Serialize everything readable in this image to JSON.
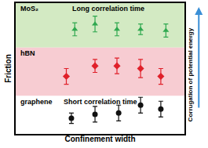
{
  "chart_data": {
    "type": "scatter",
    "xlabel": "Confinement width",
    "ylabel": "Friction",
    "y2label": "Corrugation of potential energy",
    "annotations": [
      "Long correlation time",
      "Short correlation time"
    ],
    "xlim": [
      0,
      10
    ],
    "ylim": [
      0,
      10
    ],
    "xticks": [],
    "yticks": [],
    "tick_labels": false,
    "grid": false,
    "series": [
      {
        "name": "MoS₂",
        "color": "#2fa84f",
        "marker": "triangle-up",
        "band_color": "#d3eac3",
        "band": [
          6.6,
          10
        ],
        "x": [
          3.5,
          4.7,
          6.0,
          7.4,
          8.9
        ],
        "values": [
          8.0,
          8.4,
          8.0,
          8.0,
          7.9
        ],
        "errors": [
          0.5,
          0.6,
          0.5,
          0.4,
          0.5
        ]
      },
      {
        "name": "hBN",
        "color": "#e0202a",
        "marker": "diamond",
        "band_color": "#f7ccd2",
        "band": [
          2.9,
          6.6
        ],
        "x": [
          3.0,
          4.7,
          6.0,
          7.4,
          8.6
        ],
        "values": [
          4.4,
          5.2,
          5.2,
          5.0,
          4.4
        ],
        "errors": [
          0.6,
          0.5,
          0.6,
          0.7,
          0.6
        ]
      },
      {
        "name": "graphene",
        "color": "#111111",
        "marker": "circle",
        "band_color": "#ffffff",
        "band": [
          0,
          2.9
        ],
        "x": [
          3.3,
          4.7,
          6.1,
          7.4,
          8.6
        ],
        "values": [
          1.2,
          1.5,
          1.6,
          2.2,
          1.9
        ],
        "errors": [
          0.4,
          0.6,
          0.6,
          0.6,
          0.6
        ]
      }
    ]
  }
}
